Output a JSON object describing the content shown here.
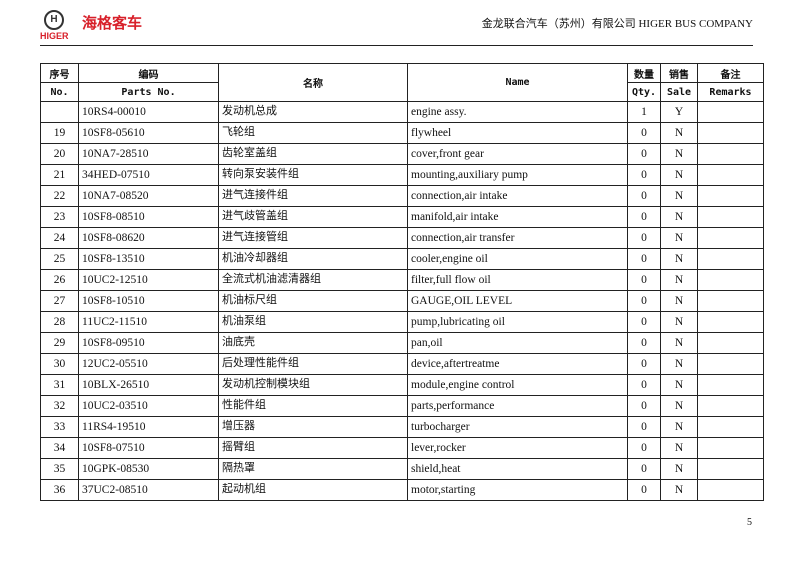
{
  "header": {
    "logo_cn": "海格客车",
    "logo_en": "HIGER",
    "company": "金龙联合汽车（苏州）有限公司 HIGER BUS COMPANY"
  },
  "table": {
    "headers": {
      "no_cn": "序号",
      "no_en": "No.",
      "part_cn": "编码",
      "part_en": "Parts No.",
      "name_cn": "名称",
      "name_en": "Name",
      "qty_cn": "数量",
      "qty_en": "Qty.",
      "sale_cn": "销售",
      "sale_en": "Sale",
      "remarks_cn": "备注",
      "remarks_en": "Remarks"
    },
    "rows": [
      {
        "no": "",
        "part": "10RS4-00010",
        "cn": "发动机总成",
        "en": "engine assy.",
        "qty": "1",
        "sale": "Y",
        "remarks": ""
      },
      {
        "no": "19",
        "part": "10SF8-05610",
        "cn": "飞轮组",
        "en": "flywheel",
        "qty": "0",
        "sale": "N",
        "remarks": ""
      },
      {
        "no": "20",
        "part": "10NA7-28510",
        "cn": "齿轮室盖组",
        "en": "cover,front gear",
        "qty": "0",
        "sale": "N",
        "remarks": ""
      },
      {
        "no": "21",
        "part": "34HED-07510",
        "cn": "转向泵安装件组",
        "en": "mounting,auxiliary pump",
        "qty": "0",
        "sale": "N",
        "remarks": ""
      },
      {
        "no": "22",
        "part": "10NA7-08520",
        "cn": "进气连接件组",
        "en": "connection,air intake",
        "qty": "0",
        "sale": "N",
        "remarks": ""
      },
      {
        "no": "23",
        "part": "10SF8-08510",
        "cn": "进气歧管盖组",
        "en": "manifold,air intake",
        "qty": "0",
        "sale": "N",
        "remarks": ""
      },
      {
        "no": "24",
        "part": "10SF8-08620",
        "cn": "进气连接管组",
        "en": "connection,air transfer",
        "qty": "0",
        "sale": "N",
        "remarks": ""
      },
      {
        "no": "25",
        "part": "10SF8-13510",
        "cn": "机油冷却器组",
        "en": "cooler,engine oil",
        "qty": "0",
        "sale": "N",
        "remarks": ""
      },
      {
        "no": "26",
        "part": "10UC2-12510",
        "cn": "全流式机油滤清器组",
        "en": "filter,full flow oil",
        "qty": "0",
        "sale": "N",
        "remarks": ""
      },
      {
        "no": "27",
        "part": "10SF8-10510",
        "cn": "机油标尺组",
        "en": "GAUGE,OIL LEVEL",
        "qty": "0",
        "sale": "N",
        "remarks": ""
      },
      {
        "no": "28",
        "part": "11UC2-11510",
        "cn": "机油泵组",
        "en": "pump,lubricating oil",
        "qty": "0",
        "sale": "N",
        "remarks": ""
      },
      {
        "no": "29",
        "part": "10SF8-09510",
        "cn": "油底壳",
        "en": "pan,oil",
        "qty": "0",
        "sale": "N",
        "remarks": ""
      },
      {
        "no": "30",
        "part": "12UC2-05510",
        "cn": "后处理性能件组",
        "en": "device,aftertreatme",
        "qty": "0",
        "sale": "N",
        "remarks": ""
      },
      {
        "no": "31",
        "part": "10BLX-26510",
        "cn": "发动机控制模块组",
        "en": "module,engine control",
        "qty": "0",
        "sale": "N",
        "remarks": ""
      },
      {
        "no": "32",
        "part": "10UC2-03510",
        "cn": "性能件组",
        "en": "parts,performance",
        "qty": "0",
        "sale": "N",
        "remarks": ""
      },
      {
        "no": "33",
        "part": "11RS4-19510",
        "cn": "增压器",
        "en": "turbocharger",
        "qty": "0",
        "sale": "N",
        "remarks": ""
      },
      {
        "no": "34",
        "part": "10SF8-07510",
        "cn": "摇臂组",
        "en": "lever,rocker",
        "qty": "0",
        "sale": "N",
        "remarks": ""
      },
      {
        "no": "35",
        "part": "10GPK-08530",
        "cn": "隔热罩",
        "en": "shield,heat",
        "qty": "0",
        "sale": "N",
        "remarks": ""
      },
      {
        "no": "36",
        "part": "37UC2-08510",
        "cn": "起动机组",
        "en": "motor,starting",
        "qty": "0",
        "sale": "N",
        "remarks": ""
      }
    ]
  },
  "footer": {
    "page": "5"
  }
}
